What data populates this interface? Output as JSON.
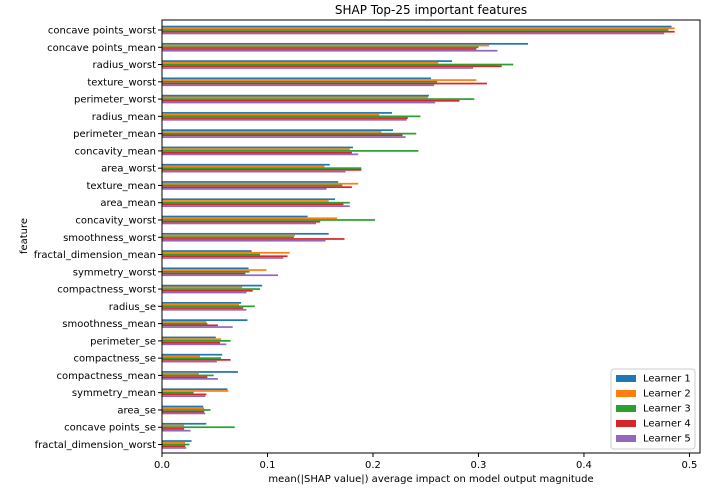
{
  "chart_data": {
    "type": "bar",
    "orientation": "horizontal",
    "title": "SHAP Top-25 important features",
    "xlabel": "mean(|SHAP value|) average impact on model output magnitude",
    "ylabel": "feature",
    "xlim": [
      0,
      0.51
    ],
    "xticks": [
      0.0,
      0.1,
      0.2,
      0.3,
      0.4,
      0.5
    ],
    "xtick_labels": [
      "0.0",
      "0.1",
      "0.2",
      "0.3",
      "0.4",
      "0.5"
    ],
    "grid": false,
    "legend_position": "lower-right",
    "categories": [
      "concave points_worst",
      "concave points_mean",
      "radius_worst",
      "texture_worst",
      "perimeter_worst",
      "radius_mean",
      "perimeter_mean",
      "concavity_mean",
      "area_worst",
      "texture_mean",
      "area_mean",
      "concavity_worst",
      "smoothness_worst",
      "fractal_dimension_mean",
      "symmetry_worst",
      "compactness_worst",
      "radius_se",
      "smoothness_mean",
      "perimeter_se",
      "compactness_se",
      "compactness_mean",
      "symmetry_mean",
      "area_se",
      "concave points_se",
      "fractal_dimension_worst"
    ],
    "series": [
      {
        "name": "Learner 1",
        "color": "#1f77b4",
        "values": [
          0.483,
          0.347,
          0.275,
          0.255,
          0.253,
          0.218,
          0.219,
          0.181,
          0.159,
          0.167,
          0.164,
          0.138,
          0.158,
          0.085,
          0.082,
          0.095,
          0.075,
          0.081,
          0.051,
          0.057,
          0.072,
          0.062,
          0.039,
          0.042,
          0.028
        ]
      },
      {
        "name": "Learner 2",
        "color": "#ff7f0e",
        "values": [
          0.486,
          0.31,
          0.262,
          0.298,
          0.252,
          0.206,
          0.208,
          0.178,
          0.154,
          0.186,
          0.158,
          0.166,
          0.126,
          0.121,
          0.099,
          0.076,
          0.073,
          0.042,
          0.056,
          0.036,
          0.035,
          0.063,
          0.04,
          0.021,
          0.022
        ]
      },
      {
        "name": "Learner 3",
        "color": "#2ca02c",
        "values": [
          0.48,
          0.3,
          0.333,
          0.261,
          0.296,
          0.245,
          0.241,
          0.243,
          0.189,
          0.171,
          0.178,
          0.202,
          0.125,
          0.093,
          0.083,
          0.093,
          0.088,
          0.043,
          0.065,
          0.056,
          0.049,
          0.03,
          0.046,
          0.069,
          0.026
        ]
      },
      {
        "name": "Learner 4",
        "color": "#d62728",
        "values": [
          0.486,
          0.298,
          0.322,
          0.308,
          0.282,
          0.233,
          0.228,
          0.18,
          0.189,
          0.18,
          0.172,
          0.15,
          0.173,
          0.119,
          0.079,
          0.086,
          0.077,
          0.053,
          0.055,
          0.065,
          0.043,
          0.042,
          0.04,
          0.021,
          0.022
        ]
      },
      {
        "name": "Learner 5",
        "color": "#9467bd",
        "values": [
          0.476,
          0.318,
          0.295,
          0.258,
          0.259,
          0.232,
          0.231,
          0.186,
          0.174,
          0.156,
          0.178,
          0.146,
          0.155,
          0.115,
          0.11,
          0.08,
          0.08,
          0.067,
          0.061,
          0.052,
          0.053,
          0.041,
          0.041,
          0.027,
          0.023
        ]
      }
    ]
  }
}
